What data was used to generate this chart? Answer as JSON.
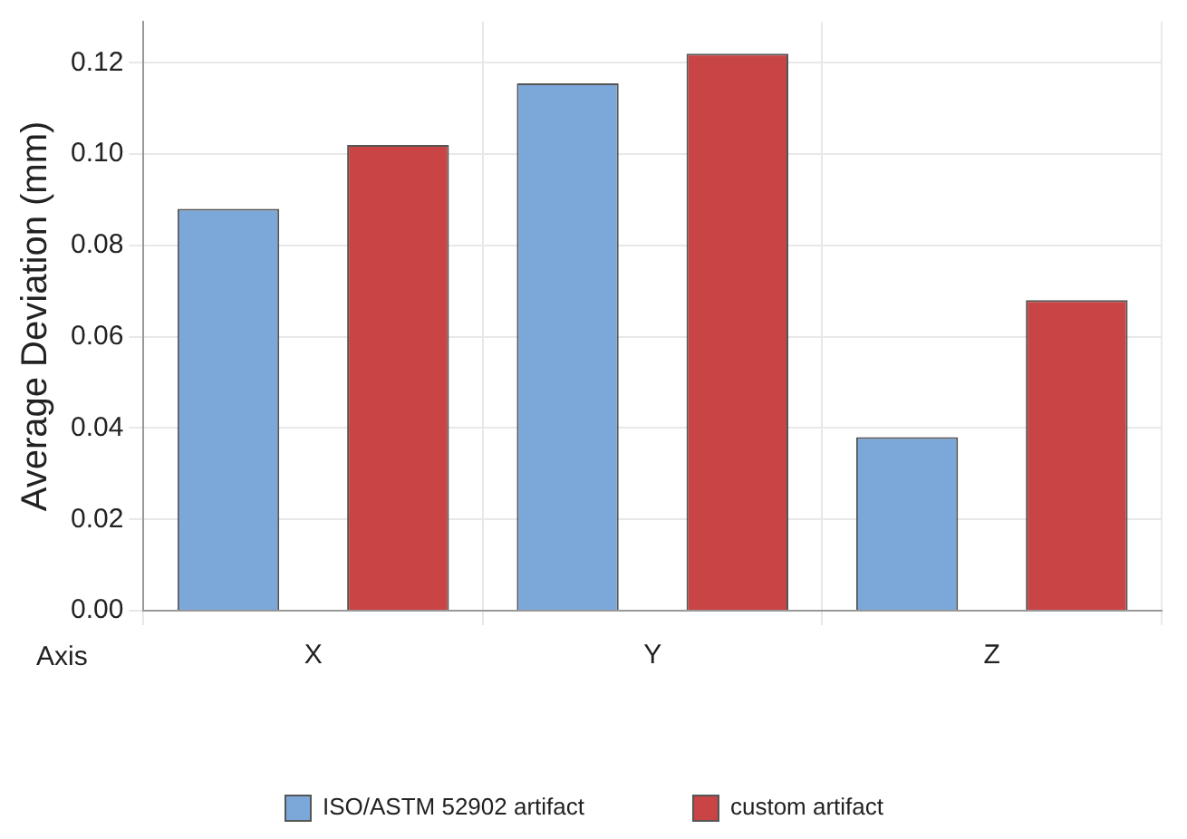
{
  "chart_data": {
    "type": "bar",
    "ylabel": "Average Deviation (mm)",
    "xlabel": "Axis",
    "categories": [
      "X",
      "Y",
      "Z"
    ],
    "series": [
      {
        "name": "ISO/ASTM 52902 artifact",
        "color": "#7ba7d9",
        "values": [
          0.088,
          0.1155,
          0.038
        ]
      },
      {
        "name": "custom artifact",
        "color": "#c94444",
        "values": [
          0.102,
          0.122,
          0.068
        ]
      }
    ],
    "ylim": [
      0,
      0.129
    ],
    "yticks": [
      {
        "value": 0,
        "label": "0.00"
      },
      {
        "value": 0.02,
        "label": "0.02"
      },
      {
        "value": 0.04,
        "label": "0.04"
      },
      {
        "value": 0.06,
        "label": "0.06"
      },
      {
        "value": 0.08,
        "label": "0.08"
      },
      {
        "value": 0.1,
        "label": "0.10"
      },
      {
        "value": 0.12,
        "label": "0.12"
      }
    ],
    "grid": true,
    "legend": "bottom"
  }
}
